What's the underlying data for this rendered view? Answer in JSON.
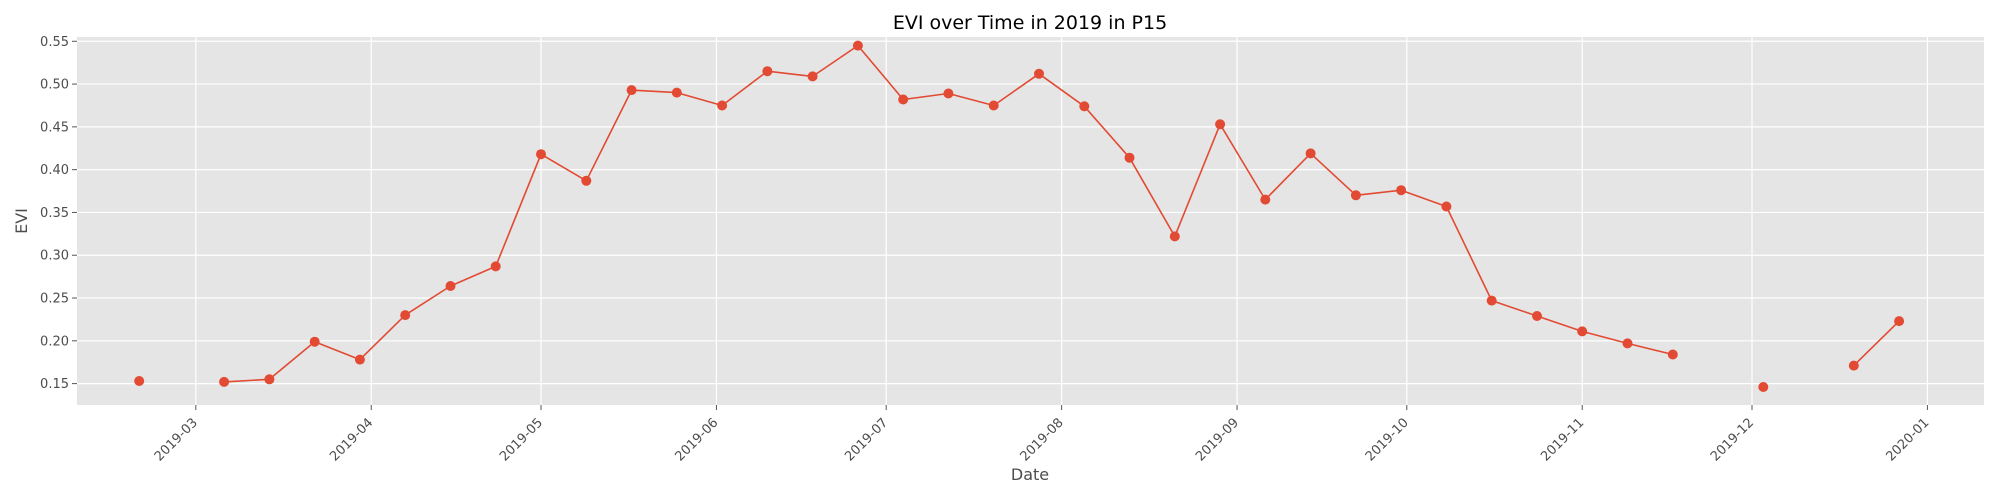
{
  "chart_data": {
    "type": "line",
    "title": "EVI over Time in 2019 in P15",
    "xlabel": "Date",
    "ylabel": "EVI",
    "xlim": [
      "2019-02-08",
      "2020-01-11"
    ],
    "ylim": [
      0.125,
      0.555
    ],
    "x_ticks": [
      "2019-03",
      "2019-04",
      "2019-05",
      "2019-06",
      "2019-07",
      "2019-08",
      "2019-09",
      "2019-10",
      "2019-11",
      "2019-12",
      "2020-01"
    ],
    "y_ticks": [
      "0.15",
      "0.20",
      "0.25",
      "0.30",
      "0.35",
      "0.40",
      "0.45",
      "0.50",
      "0.55"
    ],
    "grid": true,
    "series_color": "#E24A33",
    "background_color": "#E5E5E5",
    "series": [
      {
        "segments": [
          [
            [
              "2019-02-19",
              0.153
            ]
          ],
          [
            [
              "2019-03-06",
              0.152
            ],
            [
              "2019-03-14",
              0.155
            ],
            [
              "2019-03-22",
              0.199
            ],
            [
              "2019-03-30",
              0.178
            ],
            [
              "2019-04-07",
              0.23
            ],
            [
              "2019-04-15",
              0.264
            ],
            [
              "2019-04-23",
              0.287
            ],
            [
              "2019-05-01",
              0.418
            ],
            [
              "2019-05-09",
              0.387
            ],
            [
              "2019-05-17",
              0.493
            ],
            [
              "2019-05-25",
              0.49
            ],
            [
              "2019-06-02",
              0.475
            ],
            [
              "2019-06-10",
              0.515
            ],
            [
              "2019-06-18",
              0.509
            ],
            [
              "2019-06-26",
              0.545
            ],
            [
              "2019-07-04",
              0.482
            ],
            [
              "2019-07-12",
              0.489
            ],
            [
              "2019-07-20",
              0.475
            ],
            [
              "2019-07-28",
              0.512
            ],
            [
              "2019-08-05",
              0.474
            ],
            [
              "2019-08-13",
              0.414
            ],
            [
              "2019-08-21",
              0.322
            ],
            [
              "2019-08-29",
              0.453
            ],
            [
              "2019-09-06",
              0.365
            ],
            [
              "2019-09-14",
              0.419
            ],
            [
              "2019-09-22",
              0.37
            ],
            [
              "2019-09-30",
              0.376
            ],
            [
              "2019-10-08",
              0.357
            ],
            [
              "2019-10-16",
              0.247
            ],
            [
              "2019-10-24",
              0.229
            ],
            [
              "2019-11-01",
              0.211
            ],
            [
              "2019-11-09",
              0.197
            ],
            [
              "2019-11-17",
              0.184
            ]
          ],
          [
            [
              "2019-12-03",
              0.146
            ]
          ],
          [
            [
              "2019-12-19",
              0.171
            ],
            [
              "2019-12-27",
              0.223
            ]
          ]
        ]
      }
    ]
  }
}
